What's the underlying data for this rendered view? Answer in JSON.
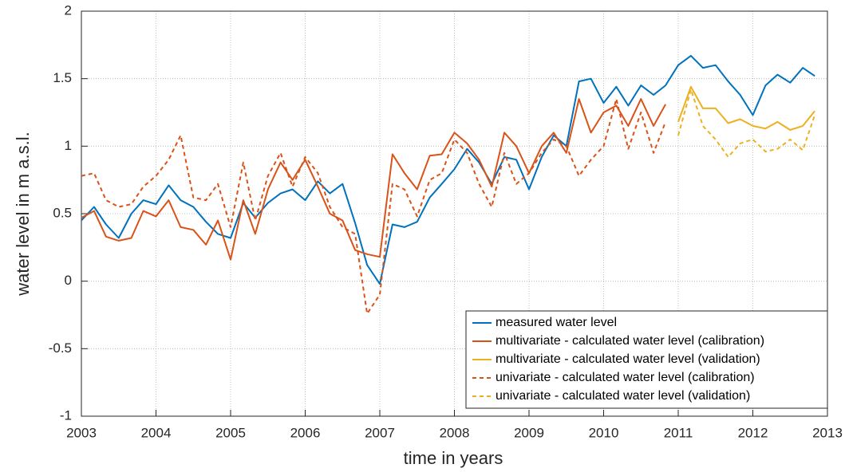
{
  "chart_data": {
    "type": "line",
    "xlabel": "time in years",
    "ylabel": "water level in m a.s.l.",
    "xlim": [
      2003,
      2013
    ],
    "ylim": [
      -1,
      2
    ],
    "xticks": [
      2003,
      2004,
      2005,
      2006,
      2007,
      2008,
      2009,
      2010,
      2011,
      2012,
      2013
    ],
    "yticks": [
      -1,
      -0.5,
      0,
      0.5,
      1,
      1.5,
      2
    ],
    "grid": true,
    "legend": "lower right",
    "x": [
      2003,
      2003.17,
      2003.33,
      2003.5,
      2003.67,
      2003.83,
      2004,
      2004.17,
      2004.33,
      2004.5,
      2004.67,
      2004.83,
      2005,
      2005.17,
      2005.33,
      2005.5,
      2005.67,
      2005.83,
      2006,
      2006.17,
      2006.33,
      2006.5,
      2006.67,
      2006.83,
      2007,
      2007.17,
      2007.33,
      2007.5,
      2007.67,
      2007.83,
      2008,
      2008.17,
      2008.33,
      2008.5,
      2008.67,
      2008.83,
      2009,
      2009.17,
      2009.33,
      2009.5,
      2009.67,
      2009.83,
      2010,
      2010.17,
      2010.33,
      2010.5,
      2010.67,
      2010.83,
      2011,
      2011.17,
      2011.33,
      2011.5,
      2011.67,
      2011.83,
      2012,
      2012.17,
      2012.33,
      2012.5,
      2012.67,
      2012.83
    ],
    "series": [
      {
        "name": "measured water level",
        "color": "#0072bd",
        "dashed": false,
        "values": [
          0.45,
          0.55,
          0.42,
          0.32,
          0.5,
          0.6,
          0.57,
          0.71,
          0.6,
          0.55,
          0.44,
          0.35,
          0.32,
          0.58,
          0.47,
          0.58,
          0.65,
          0.68,
          0.6,
          0.74,
          0.65,
          0.72,
          0.43,
          0.12,
          -0.02,
          0.42,
          0.4,
          0.44,
          0.62,
          0.72,
          0.83,
          0.98,
          0.88,
          0.72,
          0.92,
          0.9,
          0.68,
          0.92,
          1.08,
          1.0,
          1.48,
          1.5,
          1.32,
          1.44,
          1.3,
          1.45,
          1.38,
          1.45,
          1.6,
          1.67,
          1.58,
          1.6,
          1.48,
          1.38,
          1.23,
          1.45,
          1.53,
          1.47,
          1.58,
          1.52
        ]
      },
      {
        "name": "multivariate - calculated water level (calibration)",
        "color": "#d95319",
        "dashed": false,
        "values": [
          0.47,
          0.52,
          0.33,
          0.3,
          0.32,
          0.52,
          0.48,
          0.6,
          0.4,
          0.38,
          0.27,
          0.45,
          0.16,
          0.6,
          0.35,
          0.68,
          0.88,
          0.75,
          0.9,
          0.7,
          0.5,
          0.45,
          0.23,
          0.2,
          0.18,
          0.94,
          0.8,
          0.68,
          0.93,
          0.94,
          1.1,
          1.02,
          0.9,
          0.7,
          1.1,
          1.0,
          0.8,
          1.0,
          1.1,
          0.95,
          1.35,
          1.1,
          1.25,
          1.3,
          1.15,
          1.35,
          1.15,
          1.31,
          null,
          null,
          null,
          null,
          null,
          null,
          null,
          null,
          null,
          null,
          null,
          null
        ]
      },
      {
        "name": "multivariate - calculated water level (validation)",
        "color": "#edb120",
        "dashed": false,
        "values": [
          null,
          null,
          null,
          null,
          null,
          null,
          null,
          null,
          null,
          null,
          null,
          null,
          null,
          null,
          null,
          null,
          null,
          null,
          null,
          null,
          null,
          null,
          null,
          null,
          null,
          null,
          null,
          null,
          null,
          null,
          null,
          null,
          null,
          null,
          null,
          null,
          null,
          null,
          null,
          null,
          null,
          null,
          null,
          null,
          null,
          null,
          null,
          null,
          1.18,
          1.44,
          1.28,
          1.28,
          1.17,
          1.2,
          1.15,
          1.13,
          1.18,
          1.12,
          1.15,
          1.26
        ]
      },
      {
        "name": "univariate - calculated water level (calibration)",
        "color": "#d95319",
        "dashed": true,
        "values": [
          0.78,
          0.8,
          0.6,
          0.55,
          0.57,
          0.7,
          0.78,
          0.9,
          1.08,
          0.62,
          0.6,
          0.72,
          0.4,
          0.88,
          0.45,
          0.78,
          0.95,
          0.7,
          0.92,
          0.8,
          0.55,
          0.4,
          0.35,
          -0.24,
          -0.1,
          0.72,
          0.68,
          0.48,
          0.75,
          0.8,
          1.05,
          0.95,
          0.72,
          0.55,
          0.95,
          0.72,
          0.8,
          0.95,
          1.05,
          1.0,
          0.78,
          0.9,
          1.0,
          1.35,
          0.98,
          1.25,
          0.95,
          1.18,
          null,
          null,
          null,
          null,
          null,
          null,
          null,
          null,
          null,
          null,
          null,
          null
        ]
      },
      {
        "name": "univariate - calculated water level (validation)",
        "color": "#edb120",
        "dashed": true,
        "values": [
          null,
          null,
          null,
          null,
          null,
          null,
          null,
          null,
          null,
          null,
          null,
          null,
          null,
          null,
          null,
          null,
          null,
          null,
          null,
          null,
          null,
          null,
          null,
          null,
          null,
          null,
          null,
          null,
          null,
          null,
          null,
          null,
          null,
          null,
          null,
          null,
          null,
          null,
          null,
          null,
          null,
          null,
          null,
          null,
          null,
          null,
          null,
          null,
          1.08,
          1.42,
          1.15,
          1.05,
          0.92,
          1.02,
          1.05,
          0.96,
          0.98,
          1.05,
          0.97,
          1.23
        ]
      }
    ]
  }
}
